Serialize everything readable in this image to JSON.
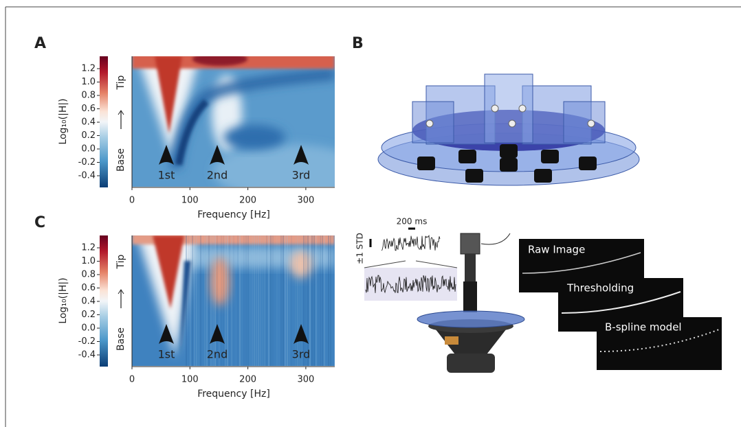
{
  "panels": {
    "A": {
      "label": "A",
      "colorbar_ticks": [
        "1.2",
        "1.0",
        "0.8",
        "0.6",
        "0.4",
        "0.2",
        "0.0",
        "-0.2",
        "-0.4"
      ],
      "y_label": "Log₁₀(|H|)",
      "tip": "Tip",
      "base": "Base",
      "annotations": [
        "1st",
        "2nd",
        "3rd"
      ],
      "x_ticks": [
        "0",
        "100",
        "200",
        "300"
      ],
      "x_label": "Frequency [Hz]"
    },
    "B": {
      "label": "B"
    },
    "C": {
      "label": "C",
      "colorbar_ticks": [
        "1.2",
        "1.0",
        "0.8",
        "0.6",
        "0.4",
        "0.2",
        "0.0",
        "-0.2",
        "-0.4"
      ],
      "y_label": "Log₁₀(|H|)",
      "tip": "Tip",
      "base": "Base",
      "annotations": [
        "1st",
        "2nd",
        "3rd"
      ],
      "x_ticks": [
        "0",
        "100",
        "200",
        "300"
      ],
      "x_label": "Frequency [Hz]",
      "scale_bar": "200 ms",
      "std_label": "±1 STD",
      "image_steps": [
        "Raw Image",
        "Thresholding",
        "B-spline model"
      ]
    }
  }
}
